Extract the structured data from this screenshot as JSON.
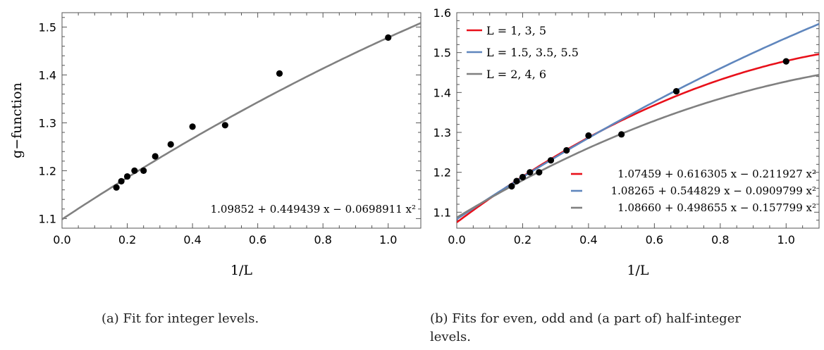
{
  "chart_data": [
    {
      "type": "scatter",
      "title": "",
      "xlabel": "1/L",
      "ylabel": "g−function",
      "xlim": [
        0,
        1.1
      ],
      "ylim": [
        1.08,
        1.53
      ],
      "xticks": [
        "0.0",
        "0.2",
        "0.4",
        "0.6",
        "0.8",
        "1.0"
      ],
      "yticks": [
        "1.1",
        "1.2",
        "1.3",
        "1.4",
        "1.5"
      ],
      "grid": false,
      "points": {
        "x": [
          0.1667,
          0.1818,
          0.2,
          0.2222,
          0.25,
          0.2857,
          0.3333,
          0.4,
          0.5,
          0.6667,
          1.0
        ],
        "y": [
          1.165,
          1.178,
          1.188,
          1.2,
          1.2,
          1.23,
          1.255,
          1.292,
          1.295,
          1.403,
          1.478
        ],
        "color": "#000000"
      },
      "series": [
        {
          "coeffs": [
            1.09852,
            0.449439,
            -0.0698911
          ],
          "color": "#808080"
        }
      ],
      "annotations": [
        {
          "text": "1.09852 + 0.449439 x − 0.0698911 x²",
          "position": "bottom-right"
        }
      ]
    },
    {
      "type": "scatter",
      "title": "",
      "xlabel": "1/L",
      "ylabel": "",
      "xlim": [
        0,
        1.1
      ],
      "ylim": [
        1.06,
        1.6
      ],
      "xticks": [
        "0.0",
        "0.2",
        "0.4",
        "0.6",
        "0.8",
        "1.0"
      ],
      "yticks": [
        "1.1",
        "1.2",
        "1.3",
        "1.4",
        "1.5",
        "1.6"
      ],
      "grid": false,
      "points": {
        "x": [
          0.1667,
          0.1818,
          0.2,
          0.2222,
          0.25,
          0.2857,
          0.3333,
          0.4,
          0.5,
          0.6667,
          1.0
        ],
        "y": [
          1.165,
          1.178,
          1.188,
          1.2,
          1.2,
          1.23,
          1.255,
          1.292,
          1.295,
          1.403,
          1.478
        ],
        "color": "#000000"
      },
      "series": [
        {
          "name": "L = 1, 3, 5",
          "coeffs": [
            1.07459,
            0.616305,
            -0.211927
          ],
          "color": "#e8101a"
        },
        {
          "name": "L = 1.5, 3.5, 5.5",
          "coeffs": [
            1.08265,
            0.544829,
            -0.0909799
          ],
          "color": "#5f86bd"
        },
        {
          "name": "L = 2, 4, 6",
          "coeffs": [
            1.0866,
            0.498655,
            -0.157799
          ],
          "color": "#808080"
        }
      ],
      "legend": "top-left",
      "annotations": [
        {
          "text": "1.07459 + 0.616305 x − 0.211927 x²",
          "color": "#e8101a"
        },
        {
          "text": "1.08265 + 0.544829 x − 0.0909799 x²",
          "color": "#5f86bd"
        },
        {
          "text": "1.08660 + 0.498655 x − 0.157799 x²",
          "color": "#808080"
        }
      ]
    }
  ],
  "captions": {
    "a_line1": "(a) Fit for integer levels.",
    "b_line1": "(b) Fits for even, odd and (a part of) half-integer",
    "b_line2": "levels."
  }
}
